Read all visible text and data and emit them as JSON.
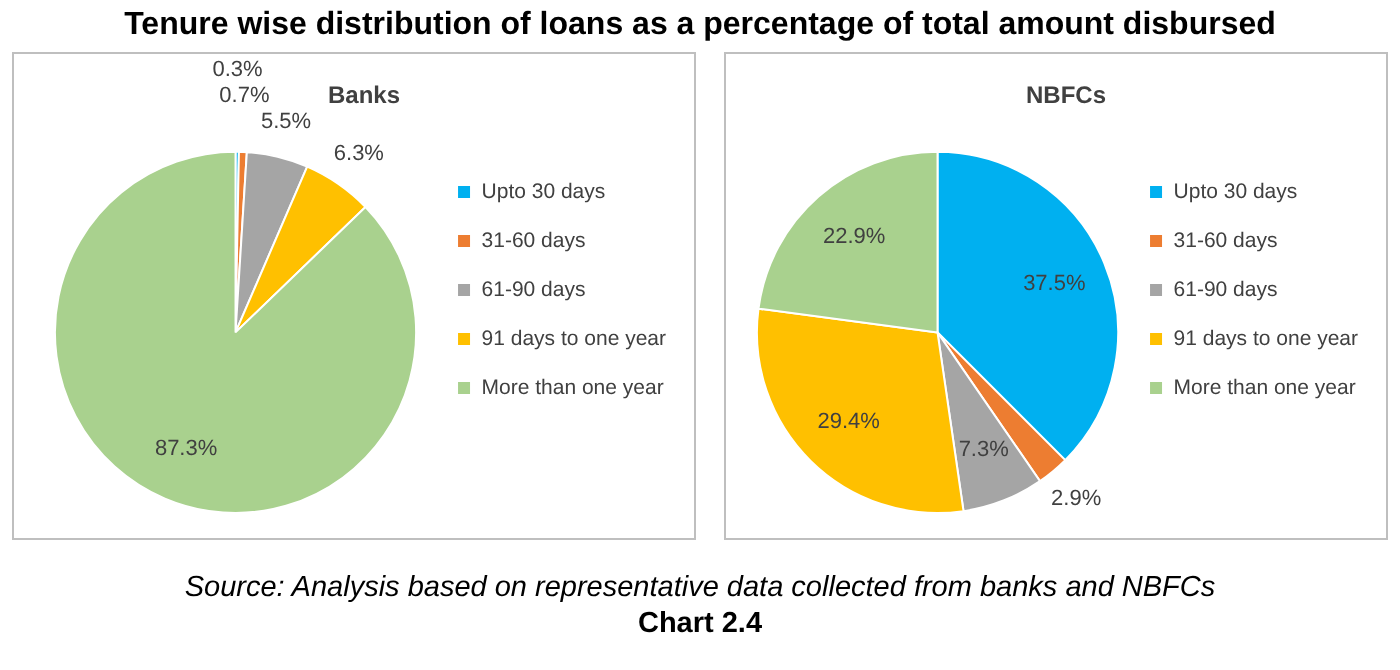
{
  "chart_data": [
    {
      "type": "pie",
      "title": "Banks",
      "annotations": [
        "Tenure wise distribution of loans as a percentage of total amount disbursed"
      ],
      "categories": [
        "Upto 30 days",
        "31-60 days",
        "61-90 days",
        "91 days to one year",
        "More than one year"
      ],
      "values": [
        0.3,
        0.7,
        5.5,
        6.3,
        87.3
      ],
      "value_labels": [
        "0.3%",
        "0.7%",
        "5.5%",
        "6.3%",
        "87.3%"
      ],
      "colors": [
        "#00b0f0",
        "#ed7d31",
        "#a5a5a5",
        "#ffc000",
        "#a9d18e"
      ],
      "legend": "right"
    },
    {
      "type": "pie",
      "title": "NBFCs",
      "annotations": [
        "Source: Analysis based on representative data collected from banks and NBFCs",
        "Chart 2.4"
      ],
      "categories": [
        "Upto 30 days",
        "31-60 days",
        "61-90 days",
        "91 days to one year",
        "More than one year"
      ],
      "values": [
        37.5,
        2.9,
        7.3,
        29.4,
        22.9
      ],
      "value_labels": [
        "37.5%",
        "2.9%",
        "7.3%",
        "29.4%",
        "22.9%"
      ],
      "colors": [
        "#00b0f0",
        "#ed7d31",
        "#a5a5a5",
        "#ffc000",
        "#a9d18e"
      ],
      "legend": "right"
    }
  ]
}
